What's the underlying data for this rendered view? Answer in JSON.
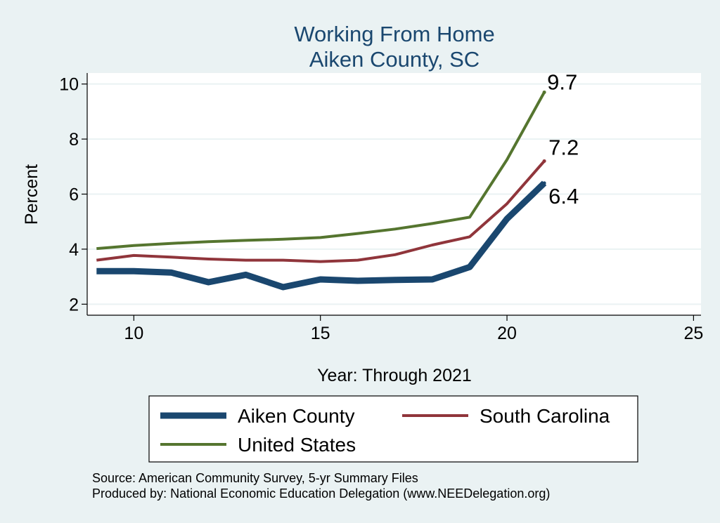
{
  "chart_data": {
    "type": "line",
    "title": "Working From Home",
    "subtitle": "Aiken County, SC",
    "xlabel": "Year: Through 2021",
    "ylabel": "Percent",
    "xlim": [
      8.75,
      25.2
    ],
    "ylim": [
      1.6,
      10.4
    ],
    "xticks": [
      10,
      15,
      20,
      25
    ],
    "yticks": [
      2,
      4,
      6,
      8,
      10
    ],
    "grid": "horizontal",
    "legend_position": "bottom",
    "series": [
      {
        "name": "Aiken County",
        "color": "#1a476f",
        "x": [
          9,
          10,
          11,
          12,
          13,
          14,
          15,
          16,
          17,
          18,
          19,
          20,
          21
        ],
        "values": [
          3.2,
          3.2,
          3.15,
          2.8,
          3.07,
          2.62,
          2.9,
          2.85,
          2.88,
          2.9,
          3.35,
          5.1,
          6.4
        ],
        "end_label": "6.4"
      },
      {
        "name": "South Carolina",
        "color": "#90353b",
        "x": [
          9,
          10,
          11,
          12,
          13,
          14,
          15,
          16,
          17,
          18,
          19,
          20,
          21
        ],
        "values": [
          3.6,
          3.77,
          3.71,
          3.64,
          3.6,
          3.6,
          3.55,
          3.6,
          3.8,
          4.15,
          4.45,
          5.65,
          7.2
        ],
        "end_label": "7.2"
      },
      {
        "name": "United States",
        "color": "#55752f",
        "x": [
          9,
          10,
          11,
          12,
          13,
          14,
          15,
          16,
          17,
          18,
          19,
          20,
          21
        ],
        "values": [
          4.02,
          4.13,
          4.21,
          4.27,
          4.32,
          4.36,
          4.42,
          4.57,
          4.73,
          4.93,
          5.16,
          7.25,
          9.7
        ],
        "end_label": "9.7"
      }
    ],
    "notes": [
      "Source: American Community Survey, 5-yr Summary Files",
      "Produced by: National Economic Education Delegation (www.NEEDelegation.org)"
    ]
  }
}
